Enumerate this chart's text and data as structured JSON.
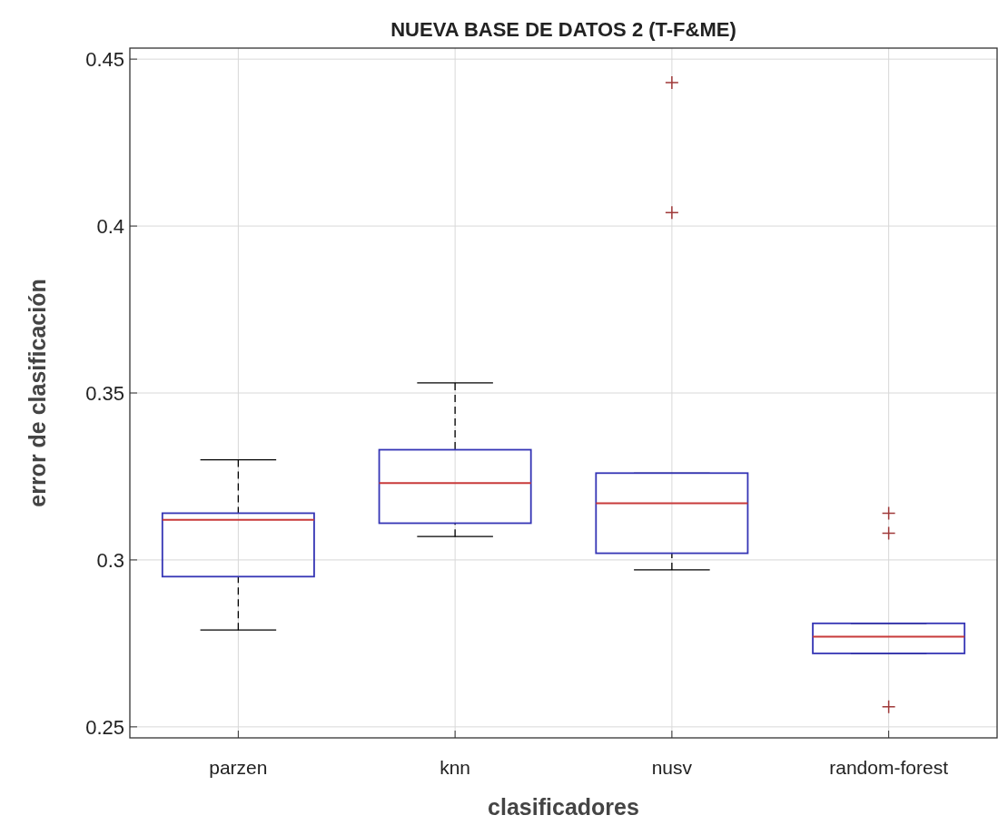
{
  "chart_data": {
    "type": "box",
    "title": "NUEVA BASE DE DATOS 2 (T-F&ME)",
    "xlabel": "clasificadores",
    "ylabel": "error de clasificación",
    "categories": [
      "parzen",
      "knn",
      "nusv",
      "random-forest"
    ],
    "boxes": [
      {
        "low": 0.279,
        "q1": 0.295,
        "median": 0.312,
        "q3": 0.314,
        "high": 0.33
      },
      {
        "low": 0.307,
        "q1": 0.311,
        "median": 0.323,
        "q3": 0.333,
        "high": 0.353
      },
      {
        "low": 0.297,
        "q1": 0.302,
        "median": 0.317,
        "q3": 0.326,
        "high": 0.326,
        "outliers": [
          0.443,
          0.404
        ]
      },
      {
        "low": 0.272,
        "q1": 0.272,
        "median": 0.277,
        "q3": 0.281,
        "high": 0.281,
        "outliers": [
          0.314,
          0.308,
          0.256
        ]
      }
    ],
    "color": "#3535b5",
    "ylim": [
      0.2467,
      0.4533
    ],
    "yticks": [
      0.25,
      0.3,
      0.35,
      0.4,
      0.45
    ],
    "grid": true,
    "marker": "cross"
  }
}
